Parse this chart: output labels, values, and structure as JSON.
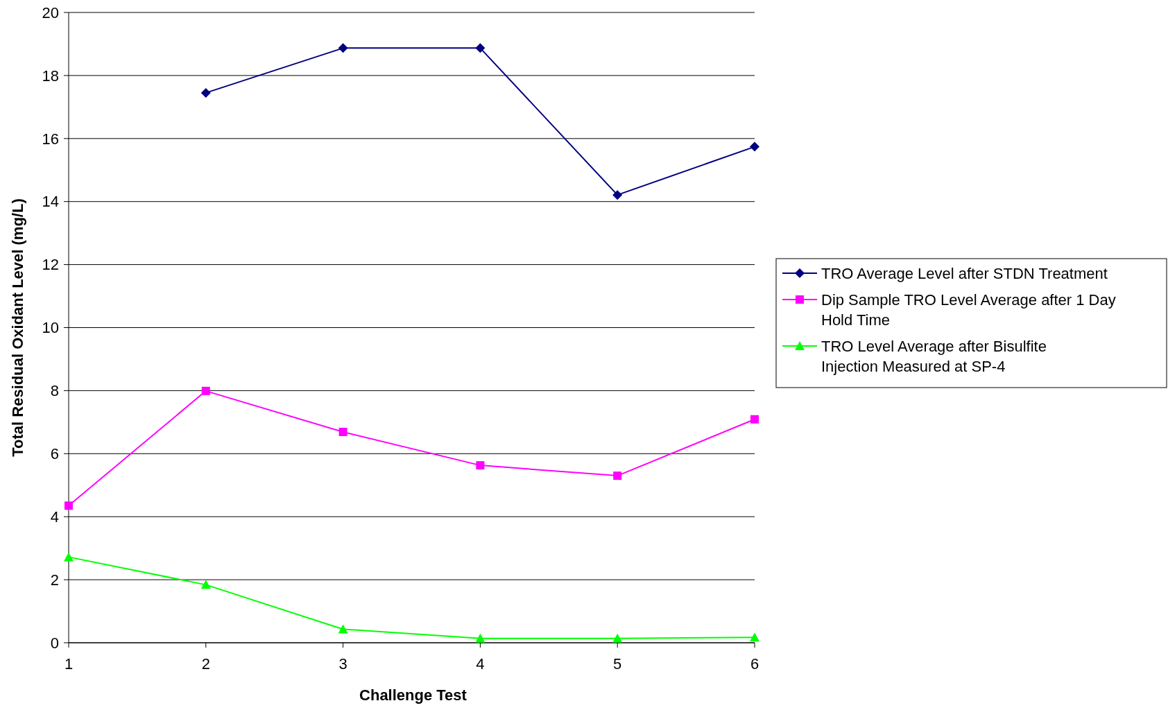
{
  "chart_data": {
    "type": "line",
    "xlabel": "Challenge Test",
    "ylabel": "Total Residual Oxidant Level (mg/L)",
    "x": [
      1,
      2,
      3,
      4,
      5,
      6
    ],
    "xlim": [
      1,
      6
    ],
    "xticks": [
      1,
      2,
      3,
      4,
      5,
      6
    ],
    "ylim": [
      0,
      20
    ],
    "yticks": [
      0,
      2,
      4,
      6,
      8,
      10,
      12,
      14,
      16,
      18,
      20
    ],
    "grid": "y",
    "legend": "right",
    "series": [
      {
        "name": "TRO Average Level after STDN Treatment",
        "color": "#000080",
        "marker": "diamond",
        "values": [
          null,
          17.45,
          18.87,
          18.87,
          14.21,
          15.74
        ]
      },
      {
        "name": "Dip Sample TRO Level Average after 1 Day Hold Time",
        "color": "#ff00ff",
        "marker": "square",
        "values": [
          4.35,
          7.99,
          6.69,
          5.63,
          5.3,
          7.09
        ]
      },
      {
        "name": "TRO Level Average after Bisulfite Injection Measured at SP-4",
        "color": "#00ff00",
        "marker": "triangle",
        "values": [
          2.72,
          1.84,
          0.43,
          0.14,
          0.14,
          0.17
        ]
      }
    ]
  }
}
